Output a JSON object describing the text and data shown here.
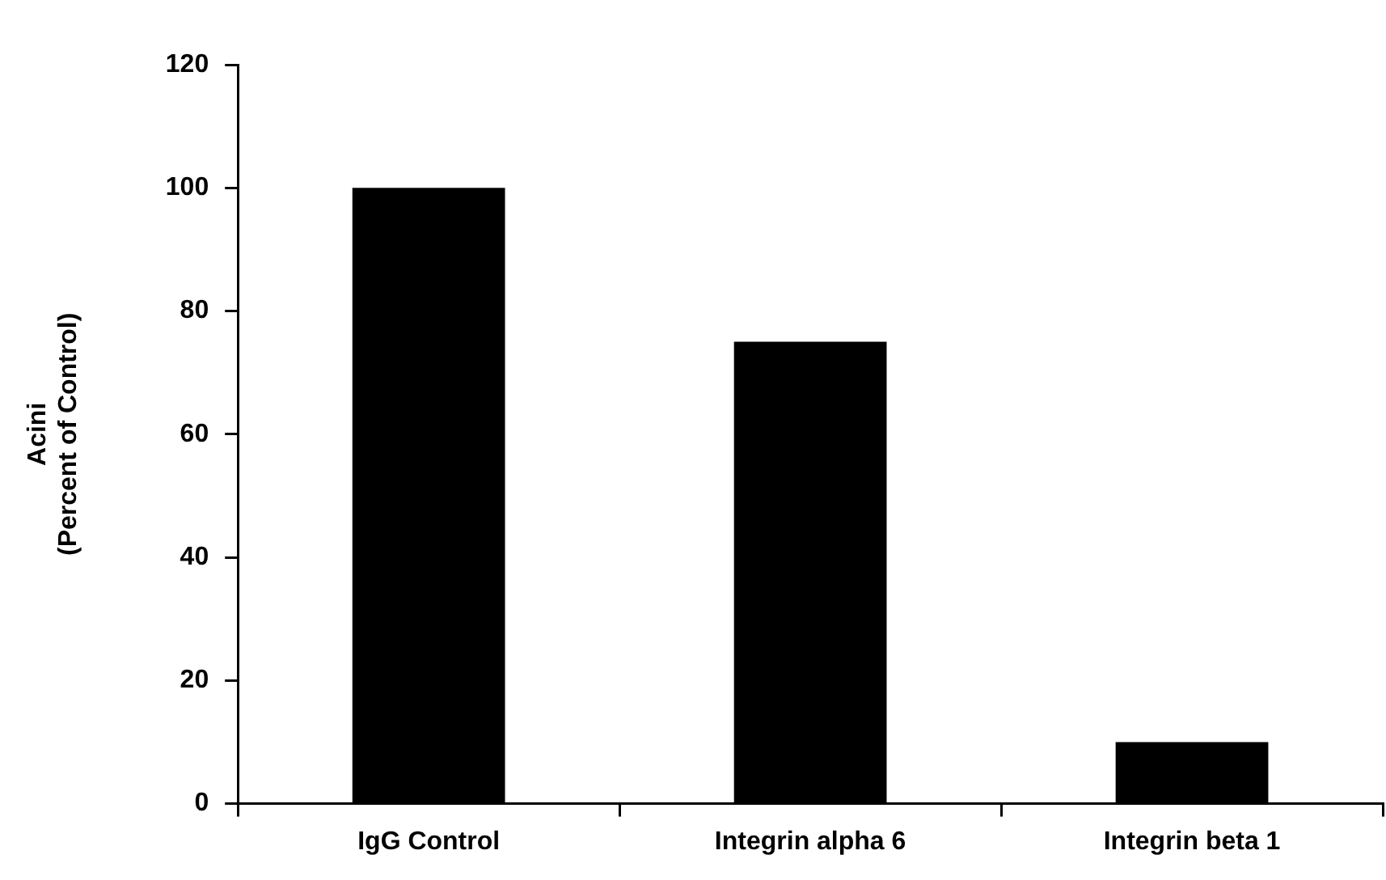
{
  "chart_data": {
    "type": "bar",
    "ylabel": "Acini\n(Percent of Control)",
    "categories": [
      "IgG Control",
      "Integrin alpha 6",
      "Integrin beta 1"
    ],
    "values": [
      100,
      75,
      10
    ],
    "color": "#000000",
    "ylim": [
      0,
      120
    ],
    "yticks": [
      0,
      20,
      40,
      60,
      80,
      100,
      120
    ],
    "grid": false,
    "legend": false
  }
}
